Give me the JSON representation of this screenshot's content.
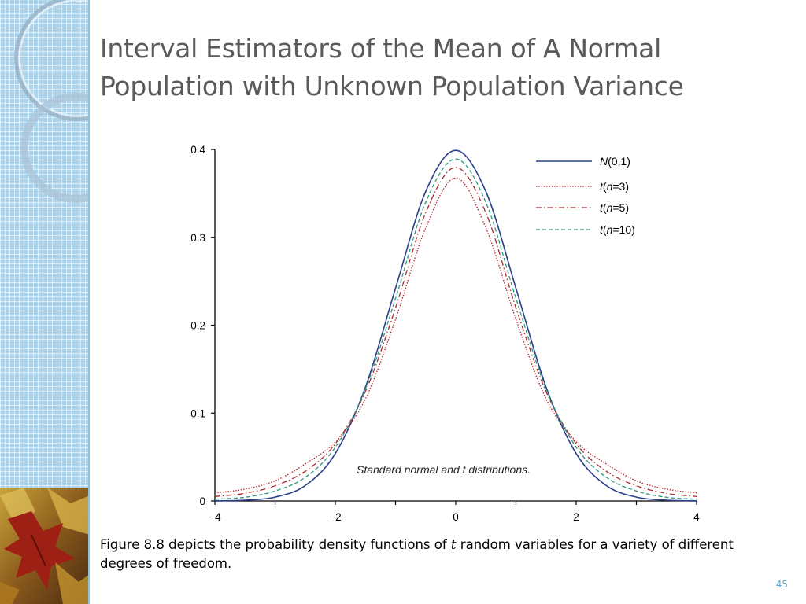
{
  "slide": {
    "title_line1": "Interval Estimators of the Mean of A Normal",
    "title_line2": "Population with Unknown Population Variance",
    "caption_before": "Figure 8.8 depicts the probability density functions of ",
    "caption_italic": "t",
    "caption_after": " random variables for a variety of different degrees of freedom.",
    "page_number": "45"
  },
  "theme": {
    "title_color": "#5a5a5a",
    "sidebar_color": "#a9d4ef",
    "page_number_color": "#5fa8c8"
  },
  "chart_data": {
    "type": "line",
    "title": "",
    "xlabel": "",
    "ylabel": "",
    "xlim": [
      -4,
      4
    ],
    "ylim": [
      0,
      0.4
    ],
    "x_ticks": [
      -4,
      -2,
      0,
      2,
      4
    ],
    "x_tick_labels": [
      "−4",
      "−2",
      "0",
      "2",
      "4"
    ],
    "y_ticks": [
      0,
      0.1,
      0.2,
      0.3,
      0.4
    ],
    "y_tick_labels": [
      "0",
      "0.1",
      "0.2",
      "0.3",
      "0.4"
    ],
    "grid": false,
    "legend_position": "top-right",
    "annotation": "Standard normal and t  distributions.",
    "series": [
      {
        "id": "normal",
        "name_prefix": "N",
        "name_suffix": "(0,1)",
        "color": "#2b3f8c",
        "dash": "solid",
        "x": [
          -4,
          -3.5,
          -3,
          -2.5,
          -2,
          -1.5,
          -1,
          -0.5,
          0,
          0.5,
          1,
          1.5,
          2,
          2.5,
          3,
          3.5,
          4
        ],
        "y": [
          0.0001,
          0.0009,
          0.0044,
          0.0175,
          0.054,
          0.1295,
          0.242,
          0.3521,
          0.3989,
          0.3521,
          0.242,
          0.1295,
          0.054,
          0.0175,
          0.0044,
          0.0009,
          0.0001
        ]
      },
      {
        "id": "t3",
        "name_prefix": "t",
        "name_n": "(n=3)",
        "color": "#b3262c",
        "dash": "dotted",
        "x": [
          -4,
          -3.5,
          -3,
          -2.5,
          -2,
          -1.5,
          -1,
          -0.5,
          0,
          0.5,
          1,
          1.5,
          2,
          2.5,
          3,
          3.5,
          4
        ],
        "y": [
          0.0092,
          0.0135,
          0.0229,
          0.0422,
          0.0675,
          0.1162,
          0.2067,
          0.3107,
          0.3676,
          0.3107,
          0.2067,
          0.1162,
          0.0675,
          0.0422,
          0.0229,
          0.0135,
          0.0092
        ]
      },
      {
        "id": "t5",
        "name_prefix": "t",
        "name_n": "(n=5)",
        "color": "#a82c2c",
        "dash": "dashdot",
        "x": [
          -4,
          -3.5,
          -3,
          -2.5,
          -2,
          -1.5,
          -1,
          -0.5,
          0,
          0.5,
          1,
          1.5,
          2,
          2.5,
          3,
          3.5,
          4
        ],
        "y": [
          0.0051,
          0.0087,
          0.0173,
          0.0338,
          0.0651,
          0.1245,
          0.2197,
          0.3279,
          0.3796,
          0.3279,
          0.2197,
          0.1245,
          0.0651,
          0.0338,
          0.0173,
          0.0087,
          0.0051
        ]
      },
      {
        "id": "t10",
        "name_prefix": "t",
        "name_n": "(n=10)",
        "color": "#2a9a7e",
        "dash": "dashed",
        "x": [
          -4,
          -3.5,
          -3,
          -2.5,
          -2,
          -1.5,
          -1,
          -0.5,
          0,
          0.5,
          1,
          1.5,
          2,
          2.5,
          3,
          3.5,
          4
        ],
        "y": [
          0.002,
          0.0042,
          0.0114,
          0.0269,
          0.0611,
          0.1274,
          0.2304,
          0.3397,
          0.3891,
          0.3397,
          0.2304,
          0.1274,
          0.0611,
          0.0269,
          0.0114,
          0.0042,
          0.002
        ]
      }
    ]
  }
}
